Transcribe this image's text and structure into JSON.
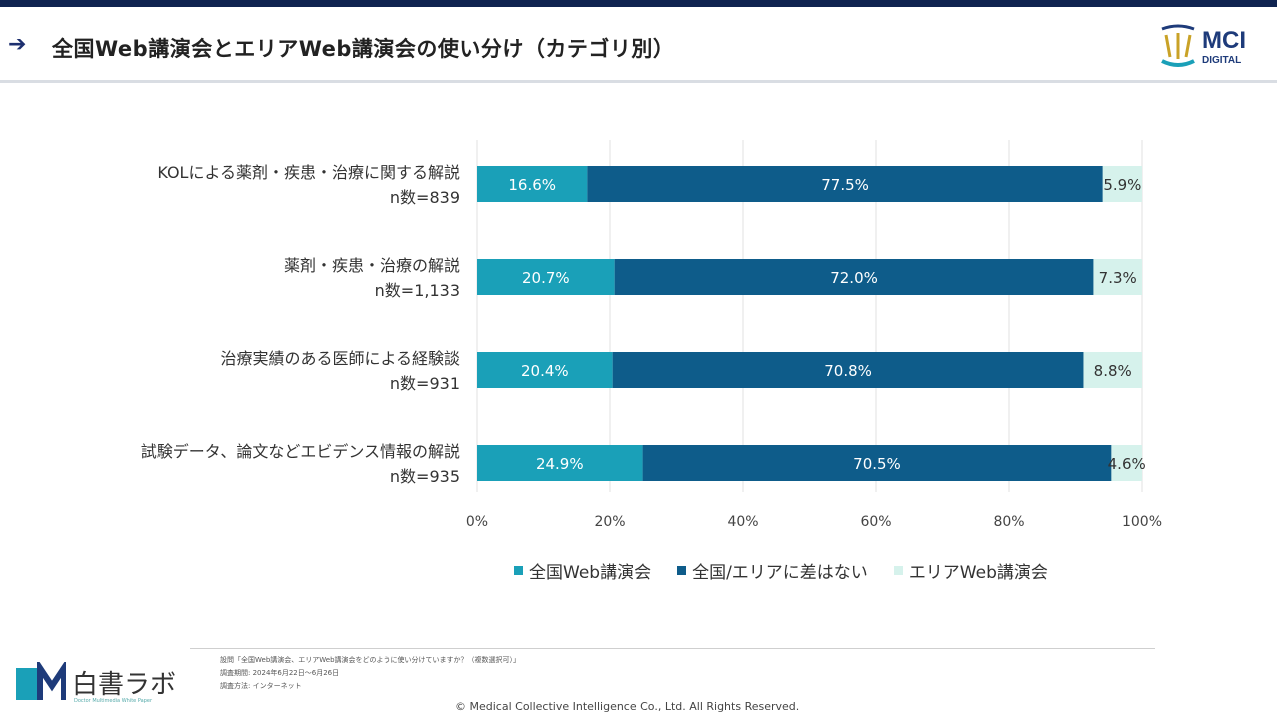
{
  "header": {
    "arrow_icon": "arrow-right-icon",
    "title": "全国Web講演会とエリアWeb講演会の使い分け（カテゴリ別）",
    "logo_name": "MCI",
    "logo_sub": "DIGITAL"
  },
  "colors": {
    "national": "#1aa0b8",
    "no_difference": "#0e5c8a",
    "area": "#d6f2ec",
    "topbar": "#0f2350"
  },
  "chart_data": {
    "type": "bar",
    "orientation": "horizontal",
    "stacked": true,
    "percent_stacked": true,
    "categories": [
      [
        "KOLによる薬剤・疾患・治療に関する解説",
        "n数=839"
      ],
      [
        "薬剤・疾患・治療の解説",
        "n数=1,133"
      ],
      [
        "治療実績のある医師による経験談",
        "n数=931"
      ],
      [
        "試験データ、論文などエビデンス情報の解説",
        "n数=935"
      ]
    ],
    "series": [
      {
        "name": "全国Web講演会",
        "values": [
          16.6,
          20.7,
          20.4,
          24.9
        ],
        "labels": [
          "16.6%",
          "20.7%",
          "20.4%",
          "24.9%"
        ]
      },
      {
        "name": "全国/エリアに差はない",
        "values": [
          77.5,
          72.0,
          70.8,
          70.5
        ],
        "labels": [
          "77.5%",
          "72.0%",
          "70.8%",
          "70.5%"
        ]
      },
      {
        "name": "エリアWeb講演会",
        "values": [
          5.9,
          7.3,
          8.8,
          4.6
        ],
        "labels": [
          "5.9%",
          "7.3%",
          "8.8%",
          "4.6%"
        ]
      }
    ],
    "x_ticks": [
      "0%",
      "20%",
      "40%",
      "60%",
      "80%",
      "100%"
    ],
    "xlim": [
      0,
      100
    ],
    "grid": true,
    "legend": "bottom"
  },
  "footer": {
    "notes": [
      "設問「全国Web講演会、エリアWeb講演会をどのように使い分けていますか？（複数選択可）」",
      "調査期間: 2024年6月22日〜6月26日",
      "調査方法: インターネット"
    ],
    "copyright": "©  Medical Collective Intelligence Co., Ltd.  All Rights Reserved.",
    "brand_name": "白書ラボ",
    "brand_sub": "Doctor Multimedia White Paper"
  }
}
